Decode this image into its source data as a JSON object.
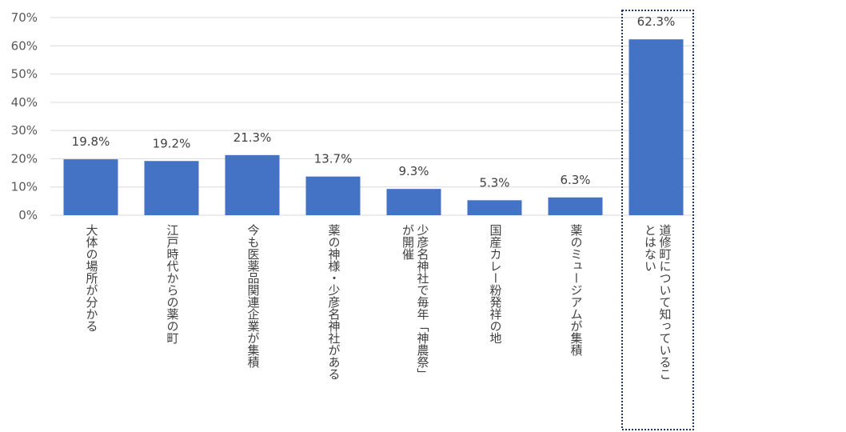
{
  "chart_data": {
    "type": "bar",
    "categories": [
      "大体の場所が分かる",
      "江戸時代からの薬の町",
      "今も医薬品関連企業が集積",
      "薬の神様・少彦名神社がある",
      "少彦名神社で毎年「神農祭」\nが開催",
      "国産カレー粉発祥の地",
      "薬のミュージアムが集積",
      "道修町について知っているこ\nとはない"
    ],
    "values": [
      19.8,
      19.2,
      21.3,
      13.7,
      9.3,
      5.3,
      6.3,
      62.3
    ],
    "data_labels": [
      "19.8%",
      "19.2%",
      "21.3%",
      "13.7%",
      "9.3%",
      "5.3%",
      "6.3%",
      "62.3%"
    ],
    "y_ticks": [
      "0%",
      "10%",
      "20%",
      "30%",
      "40%",
      "50%",
      "60%",
      "70%"
    ],
    "ylim": [
      0,
      70
    ],
    "grid": true,
    "legend": "none",
    "highlighted_category_index": 7,
    "colors": {
      "bar": "#4472C4",
      "grid": "#D9D9D9",
      "highlight_border": "#1F3864"
    }
  }
}
